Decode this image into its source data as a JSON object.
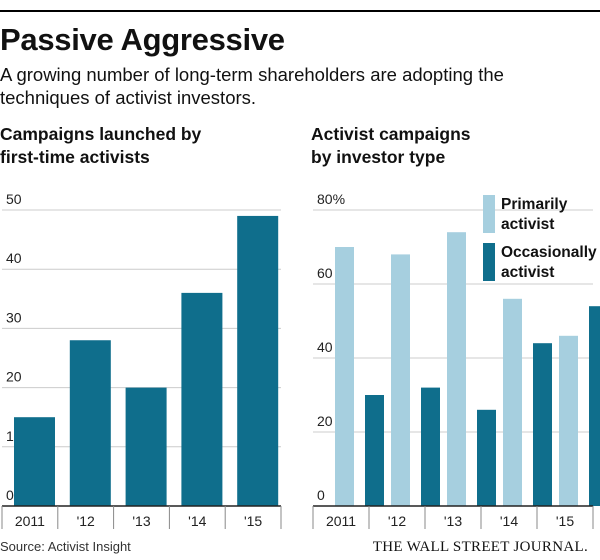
{
  "header": {
    "title": "Passive Aggressive",
    "subtitle": "A growing number of long-term shareholders are adopting the techniques of activist investors."
  },
  "footer": {
    "source": "Source: Activist Insight",
    "brand": "THE WALL STREET JOURNAL."
  },
  "colors": {
    "dark_teal": "#0f6e8c",
    "light_blue": "#a6cfdf",
    "gridline": "#cccccc",
    "axis": "#222222"
  },
  "chart_data": [
    {
      "type": "bar",
      "title_lines": [
        "Campaigns launched by",
        "first-time activists"
      ],
      "categories": [
        "2011",
        "'12",
        "'13",
        "'14",
        "'15"
      ],
      "values": [
        15,
        28,
        20,
        36,
        49
      ],
      "yticks": [
        "0",
        "10",
        "20",
        "30",
        "40",
        "50"
      ],
      "ylim": [
        0,
        50
      ],
      "grid": true
    },
    {
      "type": "bar",
      "title_lines": [
        "Activist campaigns",
        "by investor type"
      ],
      "categories": [
        "2011",
        "'12",
        "'13",
        "'14",
        "'15"
      ],
      "yticks": [
        "0",
        "20",
        "40",
        "60",
        "80%"
      ],
      "ylim": [
        0,
        80
      ],
      "grid": true,
      "legend_position": "top-right",
      "series": [
        {
          "name": "Primarily activist",
          "legend_lines": [
            "Primarily",
            "activist"
          ],
          "color": "#a6cfdf",
          "values": [
            70,
            68,
            74,
            56,
            46
          ]
        },
        {
          "name": "Occasionally activist",
          "legend_lines": [
            "Occasionally",
            "activist"
          ],
          "color": "#0f6e8c",
          "values": [
            30,
            32,
            26,
            44,
            54
          ]
        }
      ]
    }
  ]
}
